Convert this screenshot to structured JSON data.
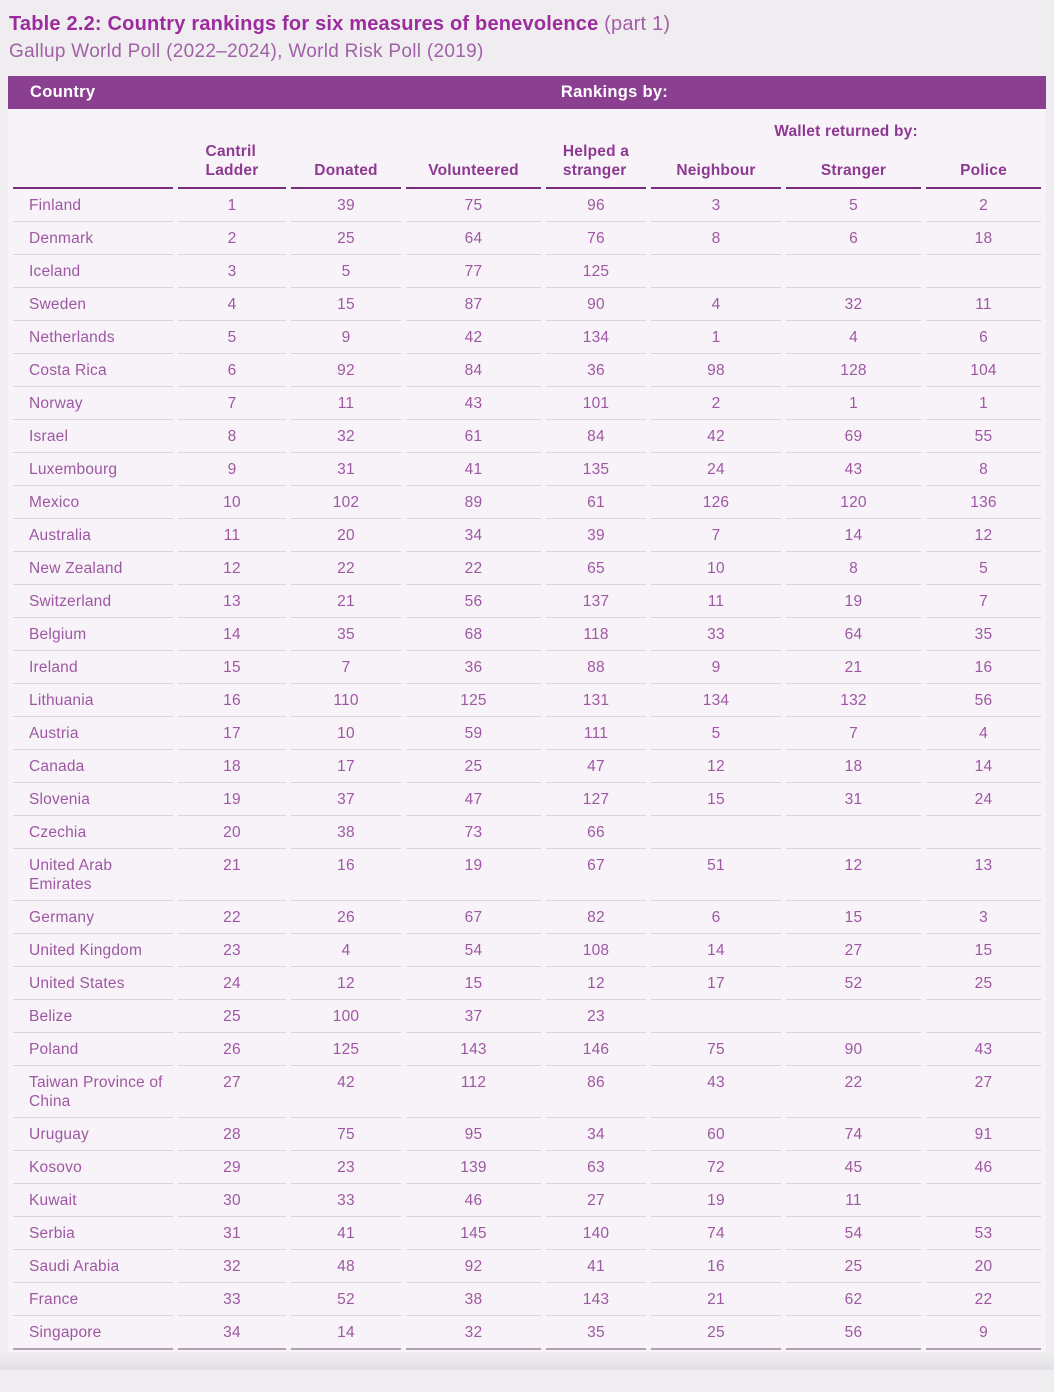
{
  "colors": {
    "header_bar": "#8b3f91",
    "header_text": "#8d3992",
    "body_text": "#9e58a3",
    "title_text": "#9c2c9e",
    "subtitle_text": "#a161a7",
    "table_background": "#f8f3f8",
    "page_background": "#f0edf1",
    "header_underline": "#762d7d",
    "row_separator": "#e0d2e1"
  },
  "title": {
    "bold": "Table 2.2: Country rankings for six measures of benevolence",
    "suffix": " (part 1)",
    "subtitle": "Gallup World Poll (2022–2024), World Risk Poll (2019)"
  },
  "table": {
    "bar": {
      "country_label": "Country",
      "rankings_label": "Rankings by:"
    },
    "wallet_group_header": "Wallet returned by:",
    "headers": [
      [
        "Cantril",
        "Ladder"
      ],
      [
        "Donated"
      ],
      [
        "Volunteered"
      ],
      [
        "Helped a",
        "stranger"
      ],
      [
        "Neighbour"
      ],
      [
        "Stranger"
      ],
      [
        "Police"
      ]
    ],
    "rows": [
      {
        "country": "Finland",
        "values": [
          "1",
          "39",
          "75",
          "96",
          "3",
          "5",
          "2"
        ]
      },
      {
        "country": "Denmark",
        "values": [
          "2",
          "25",
          "64",
          "76",
          "8",
          "6",
          "18"
        ]
      },
      {
        "country": "Iceland",
        "values": [
          "3",
          "5",
          "77",
          "125",
          "",
          "",
          ""
        ]
      },
      {
        "country": "Sweden",
        "values": [
          "4",
          "15",
          "87",
          "90",
          "4",
          "32",
          "11"
        ]
      },
      {
        "country": "Netherlands",
        "values": [
          "5",
          "9",
          "42",
          "134",
          "1",
          "4",
          "6"
        ]
      },
      {
        "country": "Costa Rica",
        "values": [
          "6",
          "92",
          "84",
          "36",
          "98",
          "128",
          "104"
        ]
      },
      {
        "country": "Norway",
        "values": [
          "7",
          "11",
          "43",
          "101",
          "2",
          "1",
          "1"
        ]
      },
      {
        "country": "Israel",
        "values": [
          "8",
          "32",
          "61",
          "84",
          "42",
          "69",
          "55"
        ]
      },
      {
        "country": "Luxembourg",
        "values": [
          "9",
          "31",
          "41",
          "135",
          "24",
          "43",
          "8"
        ]
      },
      {
        "country": "Mexico",
        "values": [
          "10",
          "102",
          "89",
          "61",
          "126",
          "120",
          "136"
        ]
      },
      {
        "country": "Australia",
        "values": [
          "11",
          "20",
          "34",
          "39",
          "7",
          "14",
          "12"
        ]
      },
      {
        "country": "New Zealand",
        "values": [
          "12",
          "22",
          "22",
          "65",
          "10",
          "8",
          "5"
        ]
      },
      {
        "country": "Switzerland",
        "values": [
          "13",
          "21",
          "56",
          "137",
          "11",
          "19",
          "7"
        ]
      },
      {
        "country": "Belgium",
        "values": [
          "14",
          "35",
          "68",
          "118",
          "33",
          "64",
          "35"
        ]
      },
      {
        "country": "Ireland",
        "values": [
          "15",
          "7",
          "36",
          "88",
          "9",
          "21",
          "16"
        ]
      },
      {
        "country": "Lithuania",
        "values": [
          "16",
          "110",
          "125",
          "131",
          "134",
          "132",
          "56"
        ]
      },
      {
        "country": "Austria",
        "values": [
          "17",
          "10",
          "59",
          "111",
          "5",
          "7",
          "4"
        ]
      },
      {
        "country": "Canada",
        "values": [
          "18",
          "17",
          "25",
          "47",
          "12",
          "18",
          "14"
        ]
      },
      {
        "country": "Slovenia",
        "values": [
          "19",
          "37",
          "47",
          "127",
          "15",
          "31",
          "24"
        ]
      },
      {
        "country": "Czechia",
        "values": [
          "20",
          "38",
          "73",
          "66",
          "",
          "",
          ""
        ]
      },
      {
        "country": "United Arab Emirates",
        "values": [
          "21",
          "16",
          "19",
          "67",
          "51",
          "12",
          "13"
        ]
      },
      {
        "country": "Germany",
        "values": [
          "22",
          "26",
          "67",
          "82",
          "6",
          "15",
          "3"
        ]
      },
      {
        "country": "United Kingdom",
        "values": [
          "23",
          "4",
          "54",
          "108",
          "14",
          "27",
          "15"
        ]
      },
      {
        "country": "United States",
        "values": [
          "24",
          "12",
          "15",
          "12",
          "17",
          "52",
          "25"
        ]
      },
      {
        "country": "Belize",
        "values": [
          "25",
          "100",
          "37",
          "23",
          "",
          "",
          ""
        ]
      },
      {
        "country": "Poland",
        "values": [
          "26",
          "125",
          "143",
          "146",
          "75",
          "90",
          "43"
        ]
      },
      {
        "country": "Taiwan Province of China",
        "values": [
          "27",
          "42",
          "112",
          "86",
          "43",
          "22",
          "27"
        ]
      },
      {
        "country": "Uruguay",
        "values": [
          "28",
          "75",
          "95",
          "34",
          "60",
          "74",
          "91"
        ]
      },
      {
        "country": "Kosovo",
        "values": [
          "29",
          "23",
          "139",
          "63",
          "72",
          "45",
          "46"
        ]
      },
      {
        "country": "Kuwait",
        "values": [
          "30",
          "33",
          "46",
          "27",
          "19",
          "11",
          ""
        ]
      },
      {
        "country": "Serbia",
        "values": [
          "31",
          "41",
          "145",
          "140",
          "74",
          "54",
          "53"
        ]
      },
      {
        "country": "Saudi Arabia",
        "values": [
          "32",
          "48",
          "92",
          "41",
          "16",
          "25",
          "20"
        ]
      },
      {
        "country": "France",
        "values": [
          "33",
          "52",
          "38",
          "143",
          "21",
          "62",
          "22"
        ]
      },
      {
        "country": "Singapore",
        "values": [
          "34",
          "14",
          "32",
          "35",
          "25",
          "56",
          "9"
        ]
      }
    ]
  }
}
